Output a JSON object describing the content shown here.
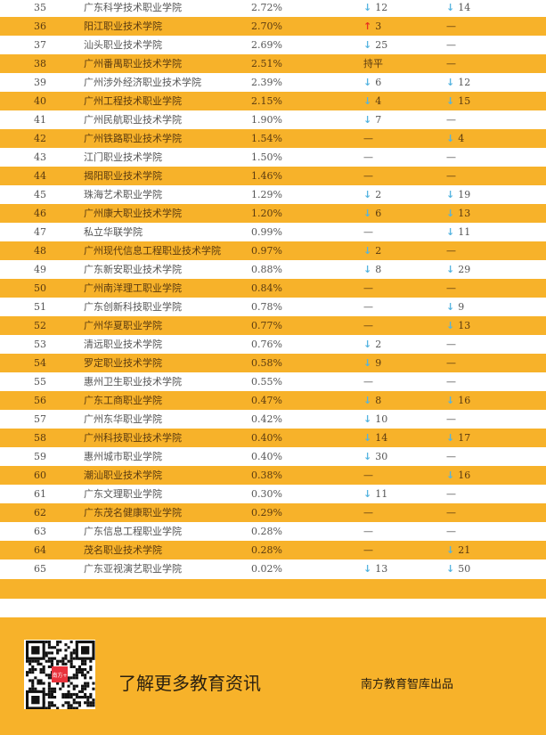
{
  "colors": {
    "row_highlight": "#F7B22A",
    "down_arrow": "#55b4e0",
    "up_arrow": "#e8321e"
  },
  "icons": {
    "down": "arrow-down-icon",
    "up": "arrow-up-icon"
  },
  "rows": [
    {
      "rank": "35",
      "name": "广东科学技术职业学院",
      "pct": "2.72%",
      "ch1": {
        "dir": "down",
        "val": "12"
      },
      "ch2": {
        "dir": "down",
        "val": "14"
      }
    },
    {
      "rank": "36",
      "name": "阳江职业技术学院",
      "pct": "2.70%",
      "ch1": {
        "dir": "up",
        "val": "3"
      },
      "ch2": {
        "text": "—"
      }
    },
    {
      "rank": "37",
      "name": "汕头职业技术学院",
      "pct": "2.69%",
      "ch1": {
        "dir": "down",
        "val": "25"
      },
      "ch2": {
        "text": "—"
      }
    },
    {
      "rank": "38",
      "name": "广州番禺职业技术学院",
      "pct": "2.51%",
      "ch1": {
        "text": "持平"
      },
      "ch2": {
        "text": "—"
      }
    },
    {
      "rank": "39",
      "name": "广州涉外经济职业技术学院",
      "pct": "2.39%",
      "ch1": {
        "dir": "down",
        "val": "6"
      },
      "ch2": {
        "dir": "down",
        "val": "12"
      }
    },
    {
      "rank": "40",
      "name": "广州工程技术职业学院",
      "pct": "2.15%",
      "ch1": {
        "dir": "down",
        "val": "4"
      },
      "ch2": {
        "dir": "down",
        "val": "15"
      }
    },
    {
      "rank": "41",
      "name": "广州民航职业技术学院",
      "pct": "1.90%",
      "ch1": {
        "dir": "down",
        "val": "7"
      },
      "ch2": {
        "text": "—"
      }
    },
    {
      "rank": "42",
      "name": "广州铁路职业技术学院",
      "pct": "1.54%",
      "ch1": {
        "text": "—"
      },
      "ch2": {
        "dir": "down",
        "val": "4"
      }
    },
    {
      "rank": "43",
      "name": "江门职业技术学院",
      "pct": "1.50%",
      "ch1": {
        "text": "—"
      },
      "ch2": {
        "text": "—"
      }
    },
    {
      "rank": "44",
      "name": "揭阳职业技术学院",
      "pct": "1.46%",
      "ch1": {
        "text": "—"
      },
      "ch2": {
        "text": "—"
      }
    },
    {
      "rank": "45",
      "name": "珠海艺术职业学院",
      "pct": "1.29%",
      "ch1": {
        "dir": "down",
        "val": "2"
      },
      "ch2": {
        "dir": "down",
        "val": "19"
      }
    },
    {
      "rank": "46",
      "name": "广州康大职业技术学院",
      "pct": "1.20%",
      "ch1": {
        "dir": "down",
        "val": "6"
      },
      "ch2": {
        "dir": "down",
        "val": "13"
      }
    },
    {
      "rank": "47",
      "name": "私立华联学院",
      "pct": "0.99%",
      "ch1": {
        "text": "—"
      },
      "ch2": {
        "dir": "down",
        "val": "11"
      }
    },
    {
      "rank": "48",
      "name": "广州现代信息工程职业技术学院",
      "pct": "0.97%",
      "ch1": {
        "dir": "down",
        "val": "2"
      },
      "ch2": {
        "text": "—"
      }
    },
    {
      "rank": "49",
      "name": "广东新安职业技术学院",
      "pct": "0.88%",
      "ch1": {
        "dir": "down",
        "val": "8"
      },
      "ch2": {
        "dir": "down",
        "val": "29"
      }
    },
    {
      "rank": "50",
      "name": "广州南洋理工职业学院",
      "pct": "0.84%",
      "ch1": {
        "text": "—"
      },
      "ch2": {
        "text": "—"
      }
    },
    {
      "rank": "51",
      "name": "广东创新科技职业学院",
      "pct": "0.78%",
      "ch1": {
        "text": "—"
      },
      "ch2": {
        "dir": "down",
        "val": "9"
      }
    },
    {
      "rank": "52",
      "name": "广州华夏职业学院",
      "pct": "0.77%",
      "ch1": {
        "text": "—"
      },
      "ch2": {
        "dir": "down",
        "val": "13"
      }
    },
    {
      "rank": "53",
      "name": "清远职业技术学院",
      "pct": "0.76%",
      "ch1": {
        "dir": "down",
        "val": "2"
      },
      "ch2": {
        "text": "—"
      }
    },
    {
      "rank": "54",
      "name": "罗定职业技术学院",
      "pct": "0.58%",
      "ch1": {
        "dir": "down",
        "val": "9"
      },
      "ch2": {
        "text": "—"
      }
    },
    {
      "rank": "55",
      "name": "惠州卫生职业技术学院",
      "pct": "0.55%",
      "ch1": {
        "text": "—"
      },
      "ch2": {
        "text": "—"
      }
    },
    {
      "rank": "56",
      "name": "广东工商职业学院",
      "pct": "0.47%",
      "ch1": {
        "dir": "down",
        "val": "8"
      },
      "ch2": {
        "dir": "down",
        "val": "16"
      }
    },
    {
      "rank": "57",
      "name": "广州东华职业学院",
      "pct": "0.42%",
      "ch1": {
        "dir": "down",
        "val": "10"
      },
      "ch2": {
        "text": "—"
      }
    },
    {
      "rank": "58",
      "name": "广州科技职业技术学院",
      "pct": "0.40%",
      "ch1": {
        "dir": "down",
        "val": "14"
      },
      "ch2": {
        "dir": "down",
        "val": "17"
      }
    },
    {
      "rank": "59",
      "name": "惠州城市职业学院",
      "pct": "0.40%",
      "ch1": {
        "dir": "down",
        "val": "30"
      },
      "ch2": {
        "text": "—"
      }
    },
    {
      "rank": "60",
      "name": "潮汕职业技术学院",
      "pct": "0.38%",
      "ch1": {
        "text": "—"
      },
      "ch2": {
        "dir": "down",
        "val": "16"
      }
    },
    {
      "rank": "61",
      "name": "广东文理职业学院",
      "pct": "0.30%",
      "ch1": {
        "dir": "down",
        "val": "11"
      },
      "ch2": {
        "text": "—"
      }
    },
    {
      "rank": "62",
      "name": "广东茂名健康职业学院",
      "pct": "0.29%",
      "ch1": {
        "text": "—"
      },
      "ch2": {
        "text": "—"
      }
    },
    {
      "rank": "63",
      "name": "广东信息工程职业学院",
      "pct": "0.28%",
      "ch1": {
        "text": "—"
      },
      "ch2": {
        "text": "—"
      }
    },
    {
      "rank": "64",
      "name": "茂名职业技术学院",
      "pct": "0.28%",
      "ch1": {
        "text": "—"
      },
      "ch2": {
        "dir": "down",
        "val": "21"
      }
    },
    {
      "rank": "65",
      "name": "广东亚视演艺职业学院",
      "pct": "0.02%",
      "ch1": {
        "dir": "down",
        "val": "13"
      },
      "ch2": {
        "dir": "down",
        "val": "50"
      }
    }
  ],
  "footer": {
    "qr_logo_text": "南方+",
    "slogan": "了解更多教育资讯",
    "credit": "南方教育智库出品"
  }
}
